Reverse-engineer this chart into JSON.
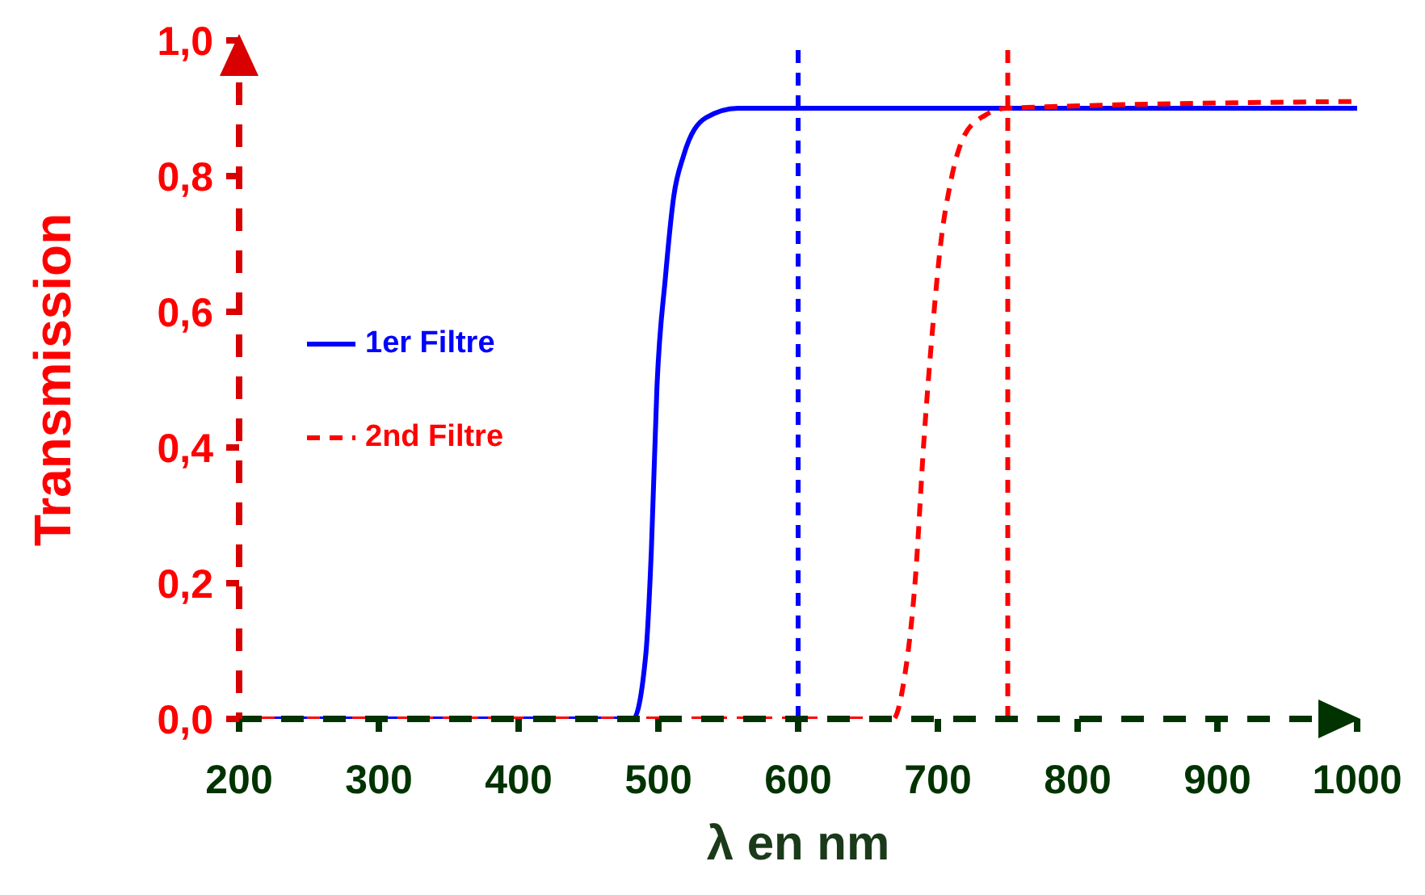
{
  "chart_data": {
    "type": "line",
    "xlabel": "λ en nm",
    "ylabel": "Transmission",
    "xlim": [
      200,
      1000
    ],
    "xticks": [
      200,
      300,
      400,
      500,
      600,
      700,
      800,
      900,
      1000
    ],
    "ylim": [
      0,
      1
    ],
    "yticks": [
      {
        "value": 0,
        "label": "0,0"
      },
      {
        "value": 0.2,
        "label": "0,2"
      },
      {
        "value": 0.4,
        "label": "0,4"
      },
      {
        "value": 0.6,
        "label": "0,6"
      },
      {
        "value": 0.8,
        "label": "0,8"
      },
      {
        "value": 1,
        "label": "1,0"
      }
    ],
    "series": [
      {
        "name": "1er Filtre",
        "color": "#0000ff",
        "line_style": "solid",
        "x": [
          200,
          482,
          491,
          495,
          499,
          505,
          511,
          518,
          534,
          557,
          600,
          1000
        ],
        "values": [
          0,
          0,
          0.095,
          0.25,
          0.49,
          0.65,
          0.77,
          0.83,
          0.886,
          0.9,
          0.9,
          0.9
        ]
      },
      {
        "name": "2nd Filtre",
        "color": "#ff0000",
        "line_style": "dashed",
        "x": [
          200,
          668,
          676,
          684,
          690,
          696,
          702,
          709,
          719,
          734,
          749,
          1000
        ],
        "values": [
          0,
          0,
          0.06,
          0.21,
          0.41,
          0.57,
          0.7,
          0.79,
          0.86,
          0.89,
          0.9,
          0.91
        ]
      }
    ],
    "ref_lines": [
      {
        "axis": "x",
        "value": 600,
        "color": "#0000ff",
        "line_style": "dashed"
      },
      {
        "axis": "x",
        "value": 750,
        "color": "#ff0000",
        "line_style": "dashed"
      }
    ],
    "legend": "left",
    "grid": false,
    "marker": "none"
  }
}
